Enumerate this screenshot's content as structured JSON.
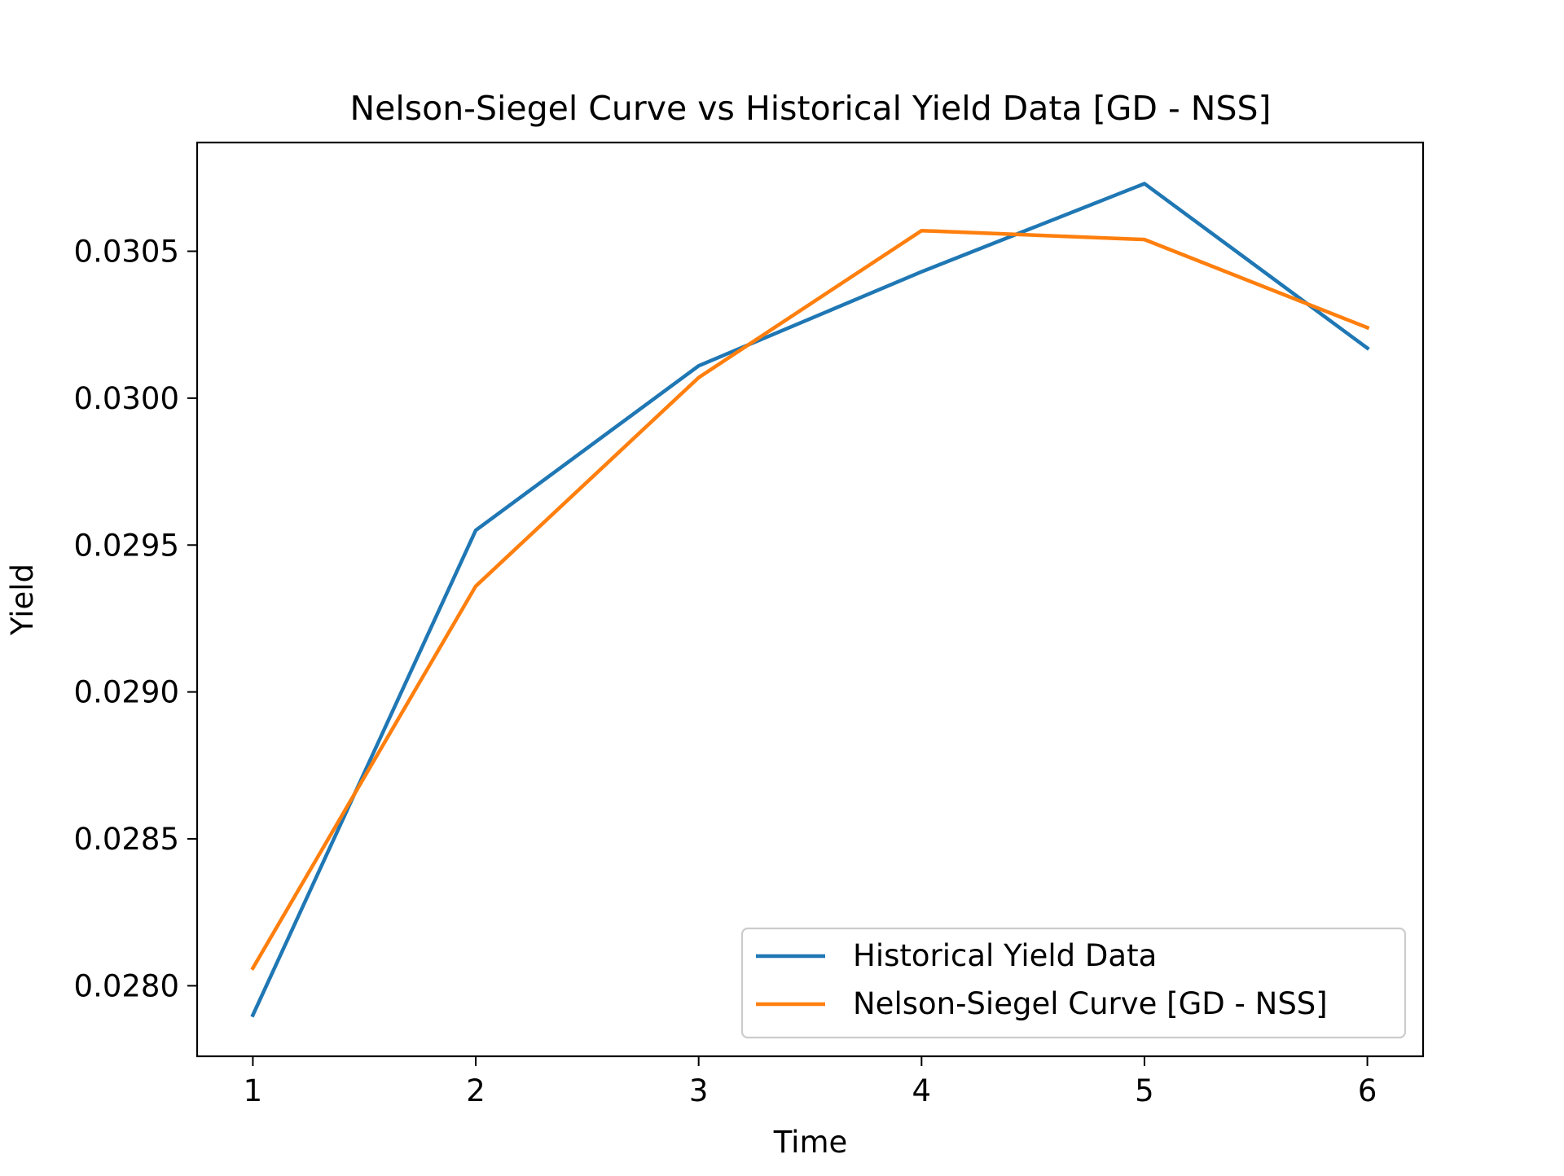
{
  "chart_data": {
    "type": "line",
    "title": "Nelson-Siegel Curve vs Historical Yield Data [GD - NSS]",
    "xlabel": "Time",
    "ylabel": "Yield",
    "x": [
      1,
      2,
      3,
      4,
      5,
      6
    ],
    "xticks": [
      1,
      2,
      3,
      4,
      5,
      6
    ],
    "xlim": [
      0.75,
      6.25
    ],
    "yticks": [
      0.028,
      0.0285,
      0.029,
      0.0295,
      0.03,
      0.0305
    ],
    "ytick_labels": [
      "0.0280",
      "0.0285",
      "0.0290",
      "0.0295",
      "0.0300",
      "0.0305"
    ],
    "ylim": [
      0.02776,
      0.03087
    ],
    "grid": false,
    "legend_position": "lower-right",
    "series": [
      {
        "name": "Historical Yield Data",
        "color": "#1f77b4",
        "values": [
          0.0279,
          0.02955,
          0.03011,
          0.03043,
          0.03073,
          0.03017
        ]
      },
      {
        "name": "Nelson-Siegel Curve [GD - NSS]",
        "color": "#ff7f0e",
        "values": [
          0.02806,
          0.02936,
          0.03007,
          0.03057,
          0.03054,
          0.03024
        ]
      }
    ]
  }
}
